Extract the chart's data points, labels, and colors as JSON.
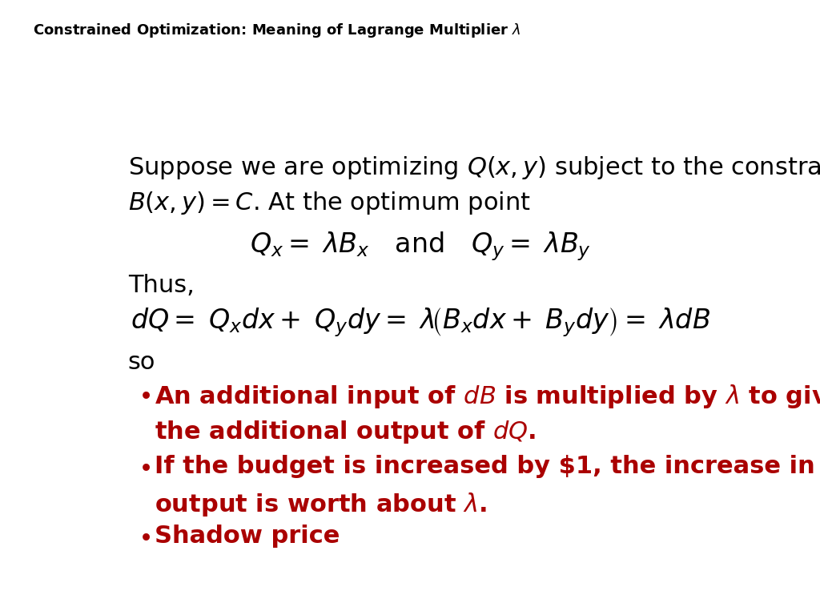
{
  "title_plain": "Constrained Optimization: Meaning of Lagrange Multiplier ",
  "title_lambda": "$\\lambda$",
  "title_fontsize": 13,
  "background_color": "#ffffff",
  "text_color": "#000000",
  "red_color": "#aa0000",
  "body_fontsize": 22,
  "bullet_fontsize": 22,
  "intro_text1": "Suppose we are optimizing $Q(x, y)$ subject to the constraint",
  "intro_text2": "$B(x, y) = C$. At the optimum point",
  "equation1": "$Q_x = \\; \\lambda B_x \\quad \\mathrm{and} \\quad Q_y= \\; \\lambda B_y$",
  "thus_text": "Thus,",
  "equation2": "$dQ = \\; Q_x dx + \\; Q_y dy = \\; \\lambda\\!\\left(B_x dx + \\; B_y dy\\right) = \\; \\lambda dB$",
  "so_text": "so",
  "bullet1_line1": "An additional input of $dB$ is multiplied by $\\lambda$ to give",
  "bullet1_line2": "the additional output of $dQ$.",
  "bullet2_line1": "If the budget is increased by $1, the increase in",
  "bullet2_line2": "output is worth about $\\lambda$.",
  "bullet3": "Shadow price"
}
